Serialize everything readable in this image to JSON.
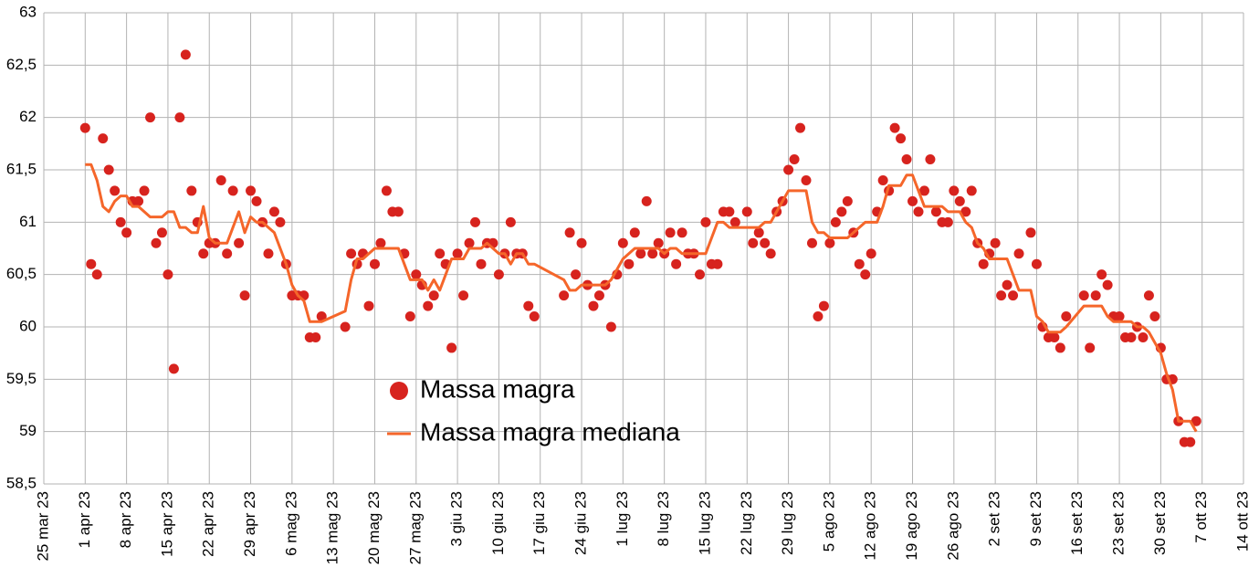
{
  "chart_data": {
    "type": "scatter",
    "x": [
      "2023-04-01",
      "2023-04-02",
      "2023-04-03",
      "2023-04-04",
      "2023-04-05",
      "2023-04-06",
      "2023-04-07",
      "2023-04-08",
      "2023-04-09",
      "2023-04-10",
      "2023-04-11",
      "2023-04-12",
      "2023-04-13",
      "2023-04-14",
      "2023-04-15",
      "2023-04-16",
      "2023-04-17",
      "2023-04-18",
      "2023-04-19",
      "2023-04-20",
      "2023-04-21",
      "2023-04-22",
      "2023-04-23",
      "2023-04-24",
      "2023-04-25",
      "2023-04-26",
      "2023-04-27",
      "2023-04-28",
      "2023-04-29",
      "2023-04-30",
      "2023-05-01",
      "2023-05-02",
      "2023-05-03",
      "2023-05-04",
      "2023-05-05",
      "2023-05-06",
      "2023-05-07",
      "2023-05-08",
      "2023-05-09",
      "2023-05-10",
      "2023-05-11",
      "2023-05-15",
      "2023-05-16",
      "2023-05-17",
      "2023-05-18",
      "2023-05-19",
      "2023-05-20",
      "2023-05-21",
      "2023-05-22",
      "2023-05-23",
      "2023-05-24",
      "2023-05-25",
      "2023-05-26",
      "2023-05-27",
      "2023-05-28",
      "2023-05-29",
      "2023-05-30",
      "2023-05-31",
      "2023-06-01",
      "2023-06-02",
      "2023-06-03",
      "2023-06-04",
      "2023-06-05",
      "2023-06-06",
      "2023-06-07",
      "2023-06-08",
      "2023-06-09",
      "2023-06-10",
      "2023-06-11",
      "2023-06-12",
      "2023-06-13",
      "2023-06-14",
      "2023-06-15",
      "2023-06-16",
      "2023-06-21",
      "2023-06-22",
      "2023-06-23",
      "2023-06-24",
      "2023-06-25",
      "2023-06-26",
      "2023-06-27",
      "2023-06-28",
      "2023-06-29",
      "2023-06-30",
      "2023-07-01",
      "2023-07-02",
      "2023-07-03",
      "2023-07-04",
      "2023-07-05",
      "2023-07-06",
      "2023-07-07",
      "2023-07-08",
      "2023-07-09",
      "2023-07-10",
      "2023-07-11",
      "2023-07-12",
      "2023-07-13",
      "2023-07-14",
      "2023-07-15",
      "2023-07-16",
      "2023-07-17",
      "2023-07-18",
      "2023-07-19",
      "2023-07-20",
      "2023-07-22",
      "2023-07-23",
      "2023-07-24",
      "2023-07-25",
      "2023-07-26",
      "2023-07-27",
      "2023-07-28",
      "2023-07-29",
      "2023-07-30",
      "2023-07-31",
      "2023-08-01",
      "2023-08-02",
      "2023-08-03",
      "2023-08-04",
      "2023-08-05",
      "2023-08-06",
      "2023-08-07",
      "2023-08-08",
      "2023-08-09",
      "2023-08-10",
      "2023-08-11",
      "2023-08-12",
      "2023-08-13",
      "2023-08-14",
      "2023-08-15",
      "2023-08-16",
      "2023-08-17",
      "2023-08-18",
      "2023-08-19",
      "2023-08-20",
      "2023-08-21",
      "2023-08-22",
      "2023-08-23",
      "2023-08-24",
      "2023-08-25",
      "2023-08-26",
      "2023-08-27",
      "2023-08-28",
      "2023-08-29",
      "2023-08-30",
      "2023-08-31",
      "2023-09-01",
      "2023-09-02",
      "2023-09-03",
      "2023-09-04",
      "2023-09-05",
      "2023-09-06",
      "2023-09-08",
      "2023-09-09",
      "2023-09-10",
      "2023-09-11",
      "2023-09-12",
      "2023-09-13",
      "2023-09-14",
      "2023-09-17",
      "2023-09-18",
      "2023-09-19",
      "2023-09-20",
      "2023-09-21",
      "2023-09-22",
      "2023-09-23",
      "2023-09-24",
      "2023-09-25",
      "2023-09-26",
      "2023-09-27",
      "2023-09-28",
      "2023-09-29",
      "2023-09-30",
      "2023-10-01",
      "2023-10-02",
      "2023-10-03",
      "2023-10-04",
      "2023-10-05",
      "2023-10-06"
    ],
    "series": [
      {
        "name": "Massa magra",
        "type": "scatter",
        "color": "#d7231e",
        "values": [
          61.9,
          60.6,
          60.5,
          61.8,
          61.5,
          61.3,
          61.0,
          60.9,
          61.2,
          61.2,
          61.3,
          62.0,
          60.8,
          60.9,
          60.5,
          59.6,
          62.0,
          62.6,
          61.3,
          61.0,
          60.7,
          60.8,
          60.8,
          61.4,
          60.7,
          61.3,
          60.8,
          60.3,
          61.3,
          61.2,
          61.0,
          60.7,
          61.1,
          61.0,
          60.6,
          60.3,
          60.3,
          60.3,
          59.9,
          59.9,
          60.1,
          60.0,
          60.7,
          60.6,
          60.7,
          60.2,
          60.6,
          60.8,
          61.3,
          61.1,
          61.1,
          60.7,
          60.1,
          60.5,
          60.4,
          60.2,
          60.3,
          60.7,
          60.6,
          59.8,
          60.7,
          60.3,
          60.8,
          61.0,
          60.6,
          60.8,
          60.8,
          60.5,
          60.7,
          61.0,
          60.7,
          60.7,
          60.2,
          60.1,
          60.3,
          60.9,
          60.5,
          60.8,
          60.4,
          60.2,
          60.3,
          60.4,
          60.0,
          60.5,
          60.8,
          60.6,
          60.9,
          60.7,
          61.2,
          60.7,
          60.8,
          60.7,
          60.9,
          60.6,
          60.9,
          60.7,
          60.7,
          60.5,
          61.0,
          60.6,
          60.6,
          61.1,
          61.1,
          61.0,
          61.1,
          60.8,
          60.9,
          60.8,
          60.7,
          61.1,
          61.2,
          61.5,
          61.6,
          61.9,
          61.4,
          60.8,
          60.1,
          60.2,
          60.8,
          61.0,
          61.1,
          61.2,
          60.9,
          60.6,
          60.5,
          60.7,
          61.1,
          61.4,
          61.3,
          61.9,
          61.8,
          61.6,
          61.2,
          61.1,
          61.3,
          61.6,
          61.1,
          61.0,
          61.0,
          61.3,
          61.2,
          61.1,
          61.3,
          60.8,
          60.6,
          60.7,
          60.8,
          60.3,
          60.4,
          60.3,
          60.7,
          60.9,
          60.6,
          60.0,
          59.9,
          59.9,
          59.8,
          60.1,
          60.3,
          59.8,
          60.3,
          60.5,
          60.4,
          60.1,
          60.1,
          59.9,
          59.9,
          60.0,
          59.9,
          60.3,
          60.1,
          59.8,
          59.5,
          59.5,
          59.1,
          58.9,
          58.9,
          59.1
        ]
      },
      {
        "name": "Massa magra mediana",
        "type": "line",
        "color": "#f5662a",
        "values": [
          61.55,
          61.55,
          61.4,
          61.15,
          61.1,
          61.2,
          61.25,
          61.25,
          61.15,
          61.15,
          61.1,
          61.05,
          61.05,
          61.05,
          61.1,
          61.1,
          60.95,
          60.95,
          60.9,
          60.9,
          61.15,
          60.85,
          60.8,
          60.8,
          60.8,
          60.95,
          61.1,
          60.9,
          61.05,
          61.0,
          61.0,
          60.95,
          60.9,
          60.75,
          60.6,
          60.4,
          60.3,
          60.25,
          60.05,
          60.05,
          60.05,
          60.15,
          60.45,
          60.65,
          60.65,
          60.7,
          60.75,
          60.75,
          60.75,
          60.75,
          60.75,
          60.6,
          60.45,
          60.45,
          60.45,
          60.35,
          60.45,
          60.35,
          60.5,
          60.65,
          60.65,
          60.65,
          60.75,
          60.75,
          60.75,
          60.8,
          60.75,
          60.7,
          60.7,
          60.6,
          60.7,
          60.7,
          60.6,
          60.6,
          60.45,
          60.35,
          60.35,
          60.4,
          60.4,
          60.4,
          60.4,
          60.4,
          60.45,
          60.55,
          60.65,
          60.7,
          60.75,
          60.75,
          60.75,
          60.75,
          60.75,
          60.7,
          60.75,
          60.75,
          60.7,
          60.7,
          60.7,
          60.7,
          60.7,
          60.85,
          61.0,
          61.0,
          60.95,
          60.95,
          60.95,
          60.95,
          60.95,
          61.0,
          61.0,
          61.1,
          61.2,
          61.3,
          61.3,
          61.3,
          61.3,
          61.0,
          60.9,
          60.9,
          60.85,
          60.85,
          60.85,
          60.85,
          60.9,
          60.95,
          61.0,
          61.0,
          61.0,
          61.15,
          61.35,
          61.35,
          61.35,
          61.45,
          61.45,
          61.3,
          61.15,
          61.15,
          61.15,
          61.15,
          61.1,
          61.1,
          61.1,
          61.0,
          60.95,
          60.8,
          60.75,
          60.65,
          60.65,
          60.65,
          60.65,
          60.5,
          60.35,
          60.35,
          60.1,
          60.05,
          59.95,
          59.95,
          59.95,
          60.0,
          60.2,
          60.2,
          60.2,
          60.2,
          60.1,
          60.05,
          60.05,
          60.05,
          60.05,
          60.0,
          60.0,
          59.95,
          59.85,
          59.75,
          59.55,
          59.4,
          59.1,
          59.1,
          59.1,
          59.0
        ]
      }
    ],
    "xlim": [
      "2023-03-25",
      "2023-10-14"
    ],
    "xticks": [
      {
        "value": "2023-03-25",
        "label": "25 mar 23"
      },
      {
        "value": "2023-04-01",
        "label": "1 apr 23"
      },
      {
        "value": "2023-04-08",
        "label": "8 apr 23"
      },
      {
        "value": "2023-04-15",
        "label": "15 apr 23"
      },
      {
        "value": "2023-04-22",
        "label": "22 apr 23"
      },
      {
        "value": "2023-04-29",
        "label": "29 apr 23"
      },
      {
        "value": "2023-05-06",
        "label": "6 mag 23"
      },
      {
        "value": "2023-05-13",
        "label": "13 mag 23"
      },
      {
        "value": "2023-05-20",
        "label": "20 mag 23"
      },
      {
        "value": "2023-05-27",
        "label": "27 mag 23"
      },
      {
        "value": "2023-06-03",
        "label": "3 giu 23"
      },
      {
        "value": "2023-06-10",
        "label": "10 giu 23"
      },
      {
        "value": "2023-06-17",
        "label": "17 giu 23"
      },
      {
        "value": "2023-06-24",
        "label": "24 giu 23"
      },
      {
        "value": "2023-07-01",
        "label": "1 lug 23"
      },
      {
        "value": "2023-07-08",
        "label": "8 lug 23"
      },
      {
        "value": "2023-07-15",
        "label": "15 lug 23"
      },
      {
        "value": "2023-07-22",
        "label": "22 lug 23"
      },
      {
        "value": "2023-07-29",
        "label": "29 lug 23"
      },
      {
        "value": "2023-08-05",
        "label": "5 ago 23"
      },
      {
        "value": "2023-08-12",
        "label": "12 ago 23"
      },
      {
        "value": "2023-08-19",
        "label": "19 ago 23"
      },
      {
        "value": "2023-08-26",
        "label": "26 ago 23"
      },
      {
        "value": "2023-09-02",
        "label": "2 set 23"
      },
      {
        "value": "2023-09-09",
        "label": "9 set 23"
      },
      {
        "value": "2023-09-16",
        "label": "16 set 23"
      },
      {
        "value": "2023-09-23",
        "label": "23 set 23"
      },
      {
        "value": "2023-09-30",
        "label": "30 set 23"
      },
      {
        "value": "2023-10-07",
        "label": "7 ott 23"
      },
      {
        "value": "2023-10-14",
        "label": "14 ott 23"
      }
    ],
    "ylim": [
      58.5,
      63
    ],
    "yticks": [
      {
        "value": 58.5,
        "label": "58,5"
      },
      59,
      {
        "value": 59.5,
        "label": "59,5"
      },
      60,
      {
        "value": 60.5,
        "label": "60,5"
      },
      61,
      {
        "value": 61.5,
        "label": "61,5"
      },
      62,
      {
        "value": 62.5,
        "label": "62,5"
      },
      63
    ],
    "grid": true
  }
}
